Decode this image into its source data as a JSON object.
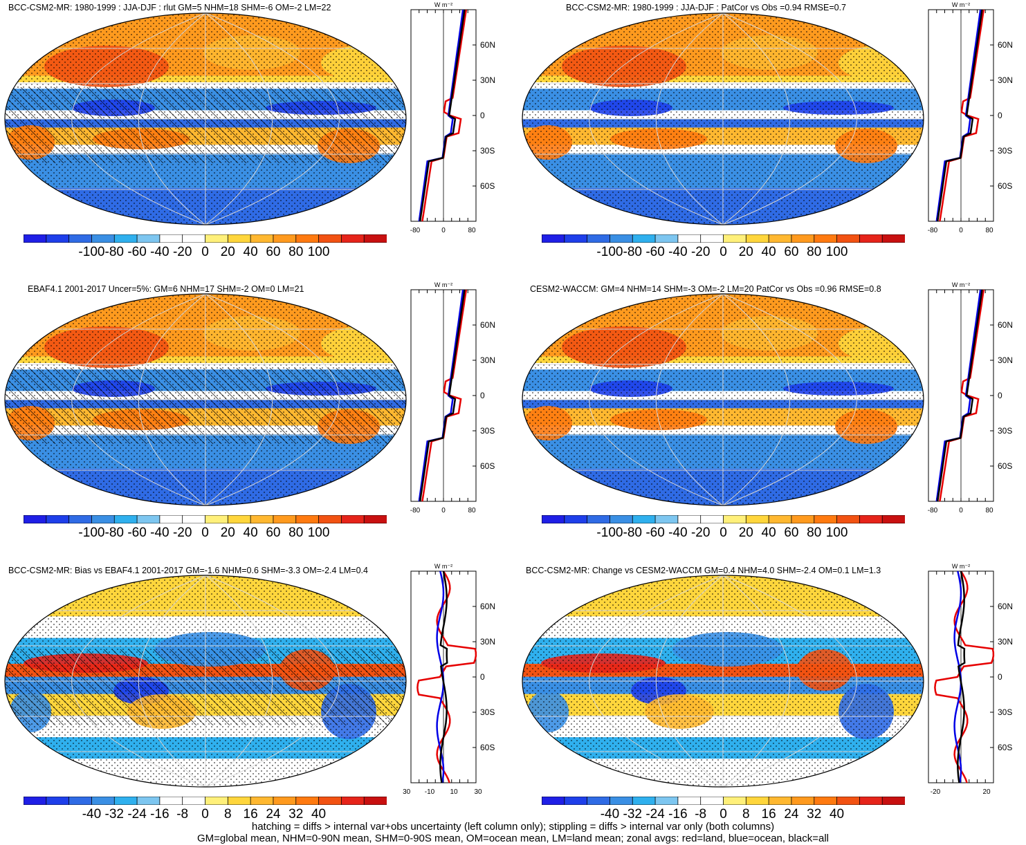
{
  "panels": [
    {
      "title": "BCC-CSM2-MR: 1980-1999 : JJA-DJF : rlut GM=5 NHM=18 SHM=-6 OM=-2 LM=22",
      "colorbar": [
        "-100",
        "-80",
        "-60",
        "-40",
        "-20",
        "0",
        "20",
        "40",
        "60",
        "80",
        "100"
      ],
      "zonal_xticks": [
        "-80",
        "0",
        "80"
      ],
      "mode": "clim",
      "hatch": true
    },
    {
      "title": "BCC-CSM2-MR: 1980-1999 : JJA-DJF : PatCor vs Obs =0.94 RMSE=0.7",
      "colorbar": [
        "-100",
        "-80",
        "-60",
        "-40",
        "-20",
        "0",
        "20",
        "40",
        "60",
        "80",
        "100"
      ],
      "zonal_xticks": [
        "-80",
        "0",
        "80"
      ],
      "mode": "clim",
      "hatch": false
    },
    {
      "title": "EBAF4.1 2001-2017 Uncer=5%: GM=6 NHM=17 SHM=-2 OM=0 LM=21",
      "colorbar": [
        "-100",
        "-80",
        "-60",
        "-40",
        "-20",
        "0",
        "20",
        "40",
        "60",
        "80",
        "100"
      ],
      "zonal_xticks": [
        "-80",
        "0",
        "80"
      ],
      "mode": "clim",
      "hatch": true
    },
    {
      "title": "CESM2-WACCM: GM=4 NHM=14 SHM=-3 OM=-2 LM=20 PatCor vs Obs =0.96 RMSE=0.8",
      "colorbar": [
        "-100",
        "-80",
        "-60",
        "-40",
        "-20",
        "0",
        "20",
        "40",
        "60",
        "80",
        "100"
      ],
      "zonal_xticks": [
        "-80",
        "0",
        "80"
      ],
      "mode": "clim",
      "hatch": false
    },
    {
      "title": "BCC-CSM2-MR: Bias vs EBAF4.1 2001-2017 GM=-1.6 NHM=0.6 SHM=-3.3 OM=-2.4 LM=0.4",
      "colorbar": [
        "-40",
        "-32",
        "-24",
        "-16",
        "-8",
        "0",
        "8",
        "16",
        "24",
        "32",
        "40"
      ],
      "zonal_xticks": [
        "-30",
        "-10",
        "10",
        "30"
      ],
      "mode": "diff",
      "hatch": true
    },
    {
      "title": "BCC-CSM2-MR: Change vs CESM2-WACCM GM=0.4 NHM=4.0 SHM=-2.4 OM=0.1 LM=1.3",
      "colorbar": [
        "-40",
        "-32",
        "-24",
        "-16",
        "-8",
        "0",
        "8",
        "16",
        "24",
        "32",
        "40"
      ],
      "zonal_xticks": [
        "-20",
        "20"
      ],
      "mode": "diff",
      "hatch": false
    }
  ],
  "zonal": {
    "units": "W m⁻²",
    "lat_labels": [
      "60N",
      "30N",
      "0",
      "30S",
      "60S"
    ],
    "legend": {
      "land": "red",
      "ocean": "blue",
      "all": "black"
    }
  },
  "colors": {
    "palette": [
      "#1f1fe6",
      "#1e3fea",
      "#2f6be5",
      "#3a8fe4",
      "#2fb0ee",
      "#7dc6f0",
      "#ffffff",
      "#ffffff",
      "#fff07a",
      "#ffd63c",
      "#ffb830",
      "#ff9a1e",
      "#ff7a10",
      "#f25212",
      "#e6241a",
      "#c81010"
    ],
    "land_line": "#e60000",
    "ocean_line": "#0000e6",
    "all_line": "#000000"
  },
  "footer": {
    "line1": "hatching = diffs > internal var+obs uncertainty (left column only); stippling = diffs > internal var only (both columns)",
    "line2": "GM=global mean, NHM=0-90N mean, SHM=0-90S mean, OM=ocean mean, LM=land mean; zonal avgs: red=land, blue=ocean, black=all"
  }
}
